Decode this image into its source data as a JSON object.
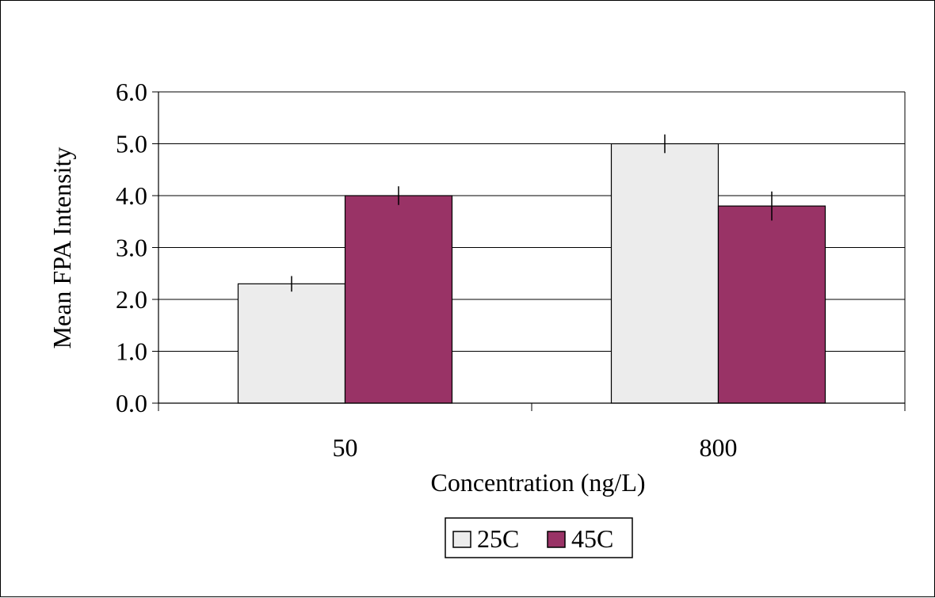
{
  "chart_data": {
    "type": "bar",
    "categories": [
      "50",
      "800"
    ],
    "series": [
      {
        "name": "25C",
        "values": [
          2.3,
          5.0
        ],
        "errors": [
          0.15,
          0.18
        ],
        "color": "#ececec"
      },
      {
        "name": "45C",
        "values": [
          4.0,
          3.8
        ],
        "errors": [
          0.18,
          0.28
        ],
        "color": "#993366"
      }
    ],
    "xlabel": "Concentration (ng/L)",
    "ylabel": "Mean FPA Intensity",
    "ylim": [
      0,
      6
    ],
    "yticks": [
      "0.0",
      "1.0",
      "2.0",
      "3.0",
      "4.0",
      "5.0",
      "6.0"
    ],
    "grid": true,
    "legend_position": "bottom"
  }
}
